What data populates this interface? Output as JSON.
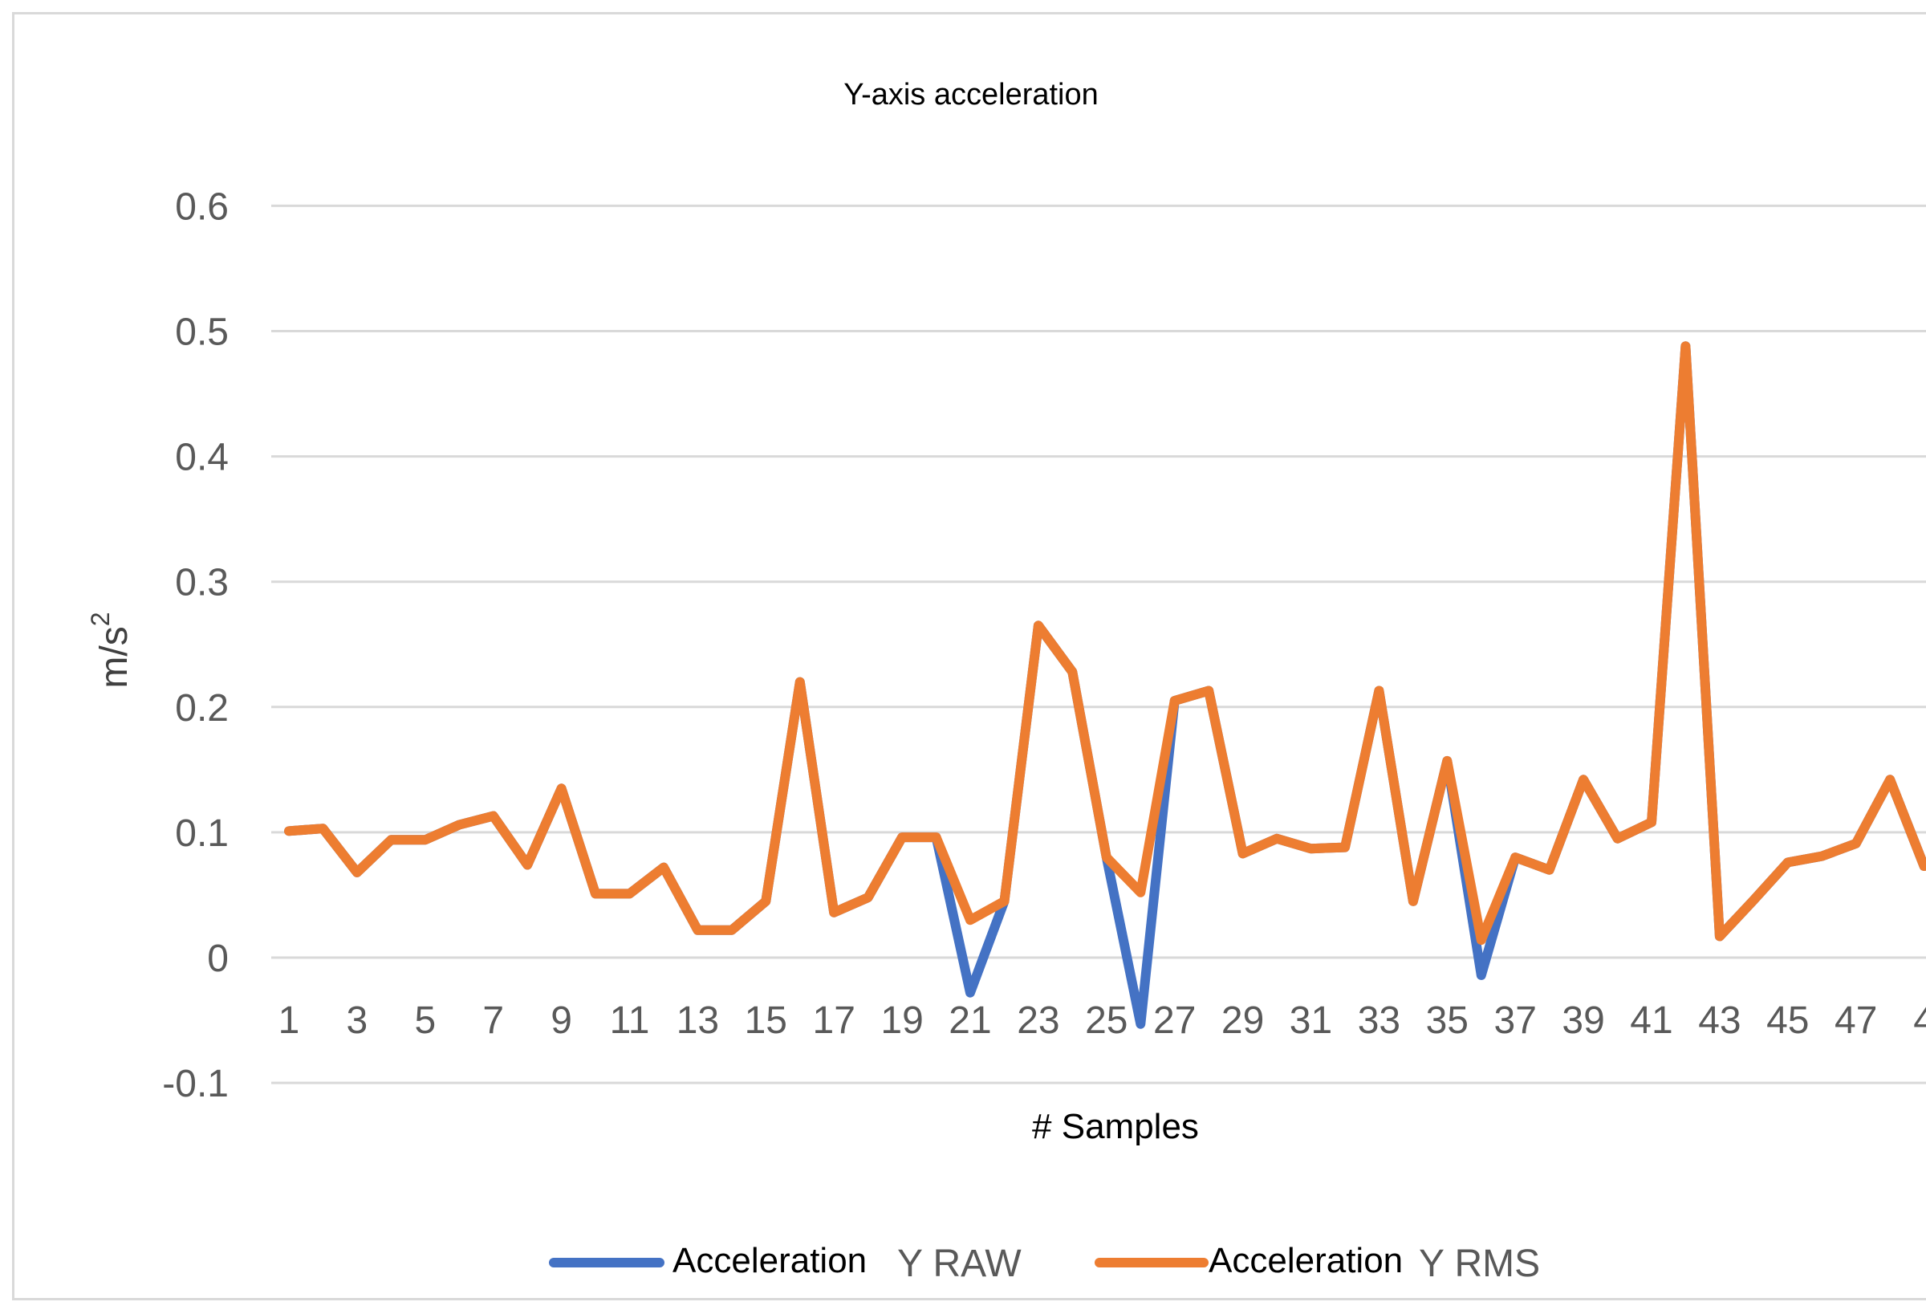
{
  "chart_data": {
    "type": "line",
    "title": "Y-axis acceleration",
    "xlabel": "# Samples",
    "ylabel": "m/s",
    "ylabel_sup": "2",
    "ylim": [
      -0.1,
      0.6
    ],
    "yticks": [
      "0.6",
      "0.5",
      "0.4",
      "0.3",
      "0.2",
      "0.1",
      "0",
      "-0.1"
    ],
    "ytick_values": [
      0.6,
      0.5,
      0.4,
      0.3,
      0.2,
      0.1,
      0,
      -0.1
    ],
    "xticks": [
      "1",
      "3",
      "5",
      "7",
      "9",
      "11",
      "13",
      "15",
      "17",
      "19",
      "21",
      "23",
      "25",
      "27",
      "29",
      "31",
      "33",
      "35",
      "37",
      "39",
      "41",
      "43",
      "45",
      "47",
      "4"
    ],
    "x": [
      1,
      2,
      3,
      4,
      5,
      6,
      7,
      8,
      9,
      10,
      11,
      12,
      13,
      14,
      15,
      16,
      17,
      18,
      19,
      20,
      21,
      22,
      23,
      24,
      25,
      26,
      27,
      28,
      29,
      30,
      31,
      32,
      33,
      34,
      35,
      36,
      37,
      38,
      39,
      40,
      41,
      42,
      43,
      44,
      45,
      46,
      47,
      48,
      49
    ],
    "grid": true,
    "legend_position": "bottom",
    "series": [
      {
        "name_main": "Acceleration",
        "name_suffix": "Y RAW",
        "color": "#4472c4",
        "values": [
          0.101,
          0.103,
          0.068,
          0.094,
          0.094,
          0.106,
          0.113,
          0.074,
          0.135,
          0.051,
          0.051,
          0.072,
          0.022,
          0.022,
          0.045,
          0.22,
          0.036,
          0.048,
          0.096,
          0.096,
          -0.028,
          0.045,
          0.265,
          0.228,
          0.08,
          -0.053,
          0.205,
          0.213,
          0.083,
          0.095,
          0.087,
          0.088,
          0.213,
          0.045,
          0.157,
          -0.014,
          0.08,
          0.07,
          0.142,
          0.095,
          0.108,
          0.488,
          0.017,
          0.046,
          0.076,
          0.081,
          0.091,
          0.142,
          0.073
        ]
      },
      {
        "name_main": "Acceleration",
        "name_suffix": "Y RMS",
        "color": "#ed7d31",
        "values": [
          0.101,
          0.103,
          0.068,
          0.094,
          0.094,
          0.106,
          0.113,
          0.074,
          0.135,
          0.051,
          0.051,
          0.072,
          0.022,
          0.022,
          0.045,
          0.22,
          0.036,
          0.048,
          0.096,
          0.096,
          0.03,
          0.045,
          0.265,
          0.228,
          0.08,
          0.052,
          0.205,
          0.213,
          0.083,
          0.095,
          0.087,
          0.088,
          0.213,
          0.045,
          0.157,
          0.014,
          0.08,
          0.07,
          0.142,
          0.095,
          0.108,
          0.488,
          0.017,
          0.046,
          0.076,
          0.081,
          0.091,
          0.142,
          0.073
        ]
      }
    ]
  }
}
